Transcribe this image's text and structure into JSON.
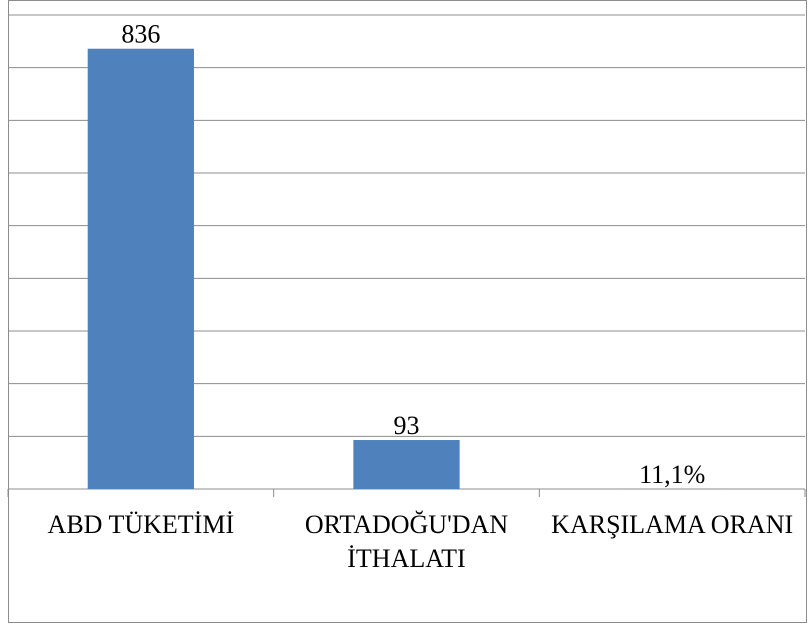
{
  "chart_data": {
    "type": "bar",
    "categories": [
      "ABD TÜKETİMİ",
      "ORTADOĞU'DAN İTHALATI",
      "KARŞILAMA ORANI"
    ],
    "values": [
      836,
      93,
      0.111
    ],
    "value_labels": [
      "836",
      "93",
      "11,1%"
    ],
    "color": "#4f81bd",
    "ylim": [
      0,
      900
    ],
    "yticks": [
      0,
      100,
      200,
      300,
      400,
      500,
      600,
      700,
      800,
      900
    ],
    "grid": true
  }
}
